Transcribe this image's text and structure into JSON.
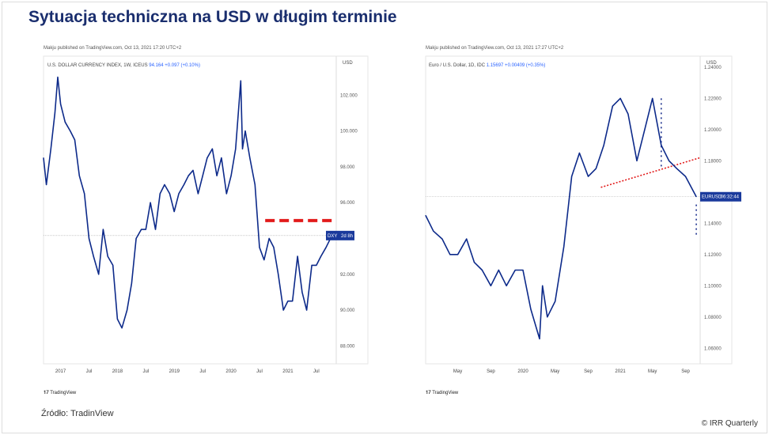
{
  "title": "Sytuacja techniczna na USD w długim terminie",
  "source": "Źródło: TradinView",
  "copyright": "© IRR Quarterly",
  "chart_data": [
    {
      "type": "line",
      "published": "Makju published on TradingView.com, Oct 13, 2021 17:20 UTC+2",
      "legend": "U.S. DOLLAR CURRENCY INDEX, 1W, ICEUS",
      "legend_value": "94.164 +0.097 (+0.10%)",
      "currency": "USD",
      "brand": "TradingView",
      "price_label": "DXY",
      "price_timer": "2d 8h",
      "last_value": 94.16,
      "ylim": [
        87,
        104
      ],
      "xlim": [
        2016.7,
        2021.85
      ],
      "yticks": [
        {
          "v": 88,
          "l": "88.000"
        },
        {
          "v": 90,
          "l": "90.000"
        },
        {
          "v": 92,
          "l": "92.000"
        },
        {
          "v": 96,
          "l": "96.000"
        },
        {
          "v": 98,
          "l": "98.000"
        },
        {
          "v": 100,
          "l": "100.000"
        },
        {
          "v": 102,
          "l": "102.000"
        }
      ],
      "xticks": [
        {
          "v": 2017.0,
          "l": "2017"
        },
        {
          "v": 2017.5,
          "l": "Jul"
        },
        {
          "v": 2018.0,
          "l": "2018"
        },
        {
          "v": 2018.5,
          "l": "Jul"
        },
        {
          "v": 2019.0,
          "l": "2019"
        },
        {
          "v": 2019.5,
          "l": "Jul"
        },
        {
          "v": 2020.0,
          "l": "2020"
        },
        {
          "v": 2020.5,
          "l": "Jul"
        },
        {
          "v": 2021.0,
          "l": "2021"
        },
        {
          "v": 2021.5,
          "l": "Jul"
        }
      ],
      "x": [
        2016.7,
        2016.75,
        2016.83,
        2016.9,
        2016.95,
        2017.0,
        2017.08,
        2017.17,
        2017.25,
        2017.33,
        2017.42,
        2017.5,
        2017.58,
        2017.67,
        2017.75,
        2017.83,
        2017.92,
        2018.0,
        2018.08,
        2018.17,
        2018.25,
        2018.33,
        2018.42,
        2018.5,
        2018.58,
        2018.67,
        2018.75,
        2018.83,
        2018.92,
        2019.0,
        2019.08,
        2019.17,
        2019.25,
        2019.33,
        2019.42,
        2019.5,
        2019.58,
        2019.67,
        2019.75,
        2019.83,
        2019.92,
        2020.0,
        2020.08,
        2020.17,
        2020.2,
        2020.25,
        2020.33,
        2020.42,
        2020.5,
        2020.58,
        2020.67,
        2020.75,
        2020.83,
        2020.92,
        2021.0,
        2021.08,
        2021.17,
        2021.25,
        2021.33,
        2021.42,
        2021.5,
        2021.58,
        2021.67,
        2021.78
      ],
      "values": [
        98.5,
        97,
        99,
        101,
        103,
        101.5,
        100.5,
        100,
        99.5,
        97.5,
        96.5,
        94,
        93,
        92,
        94.5,
        93,
        92.5,
        89.5,
        89,
        90,
        91.5,
        94,
        94.5,
        94.5,
        96,
        94.5,
        96.5,
        97,
        96.5,
        95.5,
        96.5,
        97,
        97.5,
        97.8,
        96.5,
        97.5,
        98.5,
        99,
        97.5,
        98.5,
        96.5,
        97.5,
        99,
        102.8,
        99,
        100,
        98.5,
        97,
        93.5,
        92.8,
        94,
        93.5,
        92,
        90,
        90.5,
        90.5,
        93,
        91,
        90,
        92.5,
        92.5,
        93,
        93.5,
        94.2
      ],
      "annotation": {
        "type": "dashed-level",
        "value": 95,
        "from": 2020.6,
        "to": 2021.78,
        "color": "#e21b1b"
      }
    },
    {
      "type": "line",
      "published": "Makju published on TradingView.com, Oct 13, 2021 17:27 UTC+2",
      "legend": "Euro / U.S. Dollar, 1D, IDC",
      "legend_value": "1.15697 +0.00409 (+0.35%)",
      "currency": "USD",
      "brand": "TradingView",
      "price_label": "EURUSD",
      "price_timer": "06:32:44",
      "last_value": 1.157,
      "ylim": [
        1.05,
        1.245
      ],
      "xlim": [
        2019.0,
        2021.82
      ],
      "yticks": [
        {
          "v": 1.06,
          "l": "1.06000"
        },
        {
          "v": 1.08,
          "l": "1.08000"
        },
        {
          "v": 1.1,
          "l": "1.10000"
        },
        {
          "v": 1.12,
          "l": "1.12000"
        },
        {
          "v": 1.14,
          "l": "1.14000"
        },
        {
          "v": 1.18,
          "l": "1.18000"
        },
        {
          "v": 1.2,
          "l": "1.20000"
        },
        {
          "v": 1.22,
          "l": "1.22000"
        },
        {
          "v": 1.24,
          "l": "1.24000"
        }
      ],
      "xticks": [
        {
          "v": 2019.33,
          "l": "May"
        },
        {
          "v": 2019.67,
          "l": "Sep"
        },
        {
          "v": 2020.0,
          "l": "2020"
        },
        {
          "v": 2020.33,
          "l": "May"
        },
        {
          "v": 2020.67,
          "l": "Sep"
        },
        {
          "v": 2021.0,
          "l": "2021"
        },
        {
          "v": 2021.33,
          "l": "May"
        },
        {
          "v": 2021.67,
          "l": "Sep"
        }
      ],
      "x": [
        2019.0,
        2019.08,
        2019.17,
        2019.25,
        2019.33,
        2019.42,
        2019.5,
        2019.58,
        2019.67,
        2019.75,
        2019.83,
        2019.92,
        2020.0,
        2020.08,
        2020.17,
        2020.2,
        2020.25,
        2020.33,
        2020.42,
        2020.5,
        2020.58,
        2020.67,
        2020.75,
        2020.83,
        2020.92,
        2021.0,
        2021.08,
        2021.17,
        2021.25,
        2021.33,
        2021.42,
        2021.5,
        2021.58,
        2021.67,
        2021.78
      ],
      "values": [
        1.145,
        1.135,
        1.13,
        1.12,
        1.12,
        1.13,
        1.115,
        1.11,
        1.1,
        1.11,
        1.1,
        1.11,
        1.11,
        1.085,
        1.066,
        1.1,
        1.08,
        1.09,
        1.125,
        1.17,
        1.185,
        1.17,
        1.175,
        1.19,
        1.215,
        1.22,
        1.21,
        1.18,
        1.2,
        1.22,
        1.19,
        1.18,
        1.175,
        1.17,
        1.157
      ],
      "annotation": {
        "type": "dotted-trendline",
        "from": [
          2020.8,
          1.163
        ],
        "to": [
          2021.82,
          1.182
        ],
        "color": "#e21b1b"
      }
    }
  ]
}
